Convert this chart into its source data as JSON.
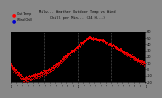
{
  "title_line1": "Milw... Weather Outdoor Temp vs Wind",
  "title_line2": "Chill per Min... (24 H...)",
  "bg_color": "#000000",
  "outer_bg": "#888888",
  "temp_color": "#ff0000",
  "windchill_color": "#ff0000",
  "ylim": [
    -20,
    60
  ],
  "ytick_labels": [
    "60",
    "50",
    "40",
    "30",
    "20",
    "10",
    "0",
    "-10",
    "-20"
  ],
  "ytick_vals": [
    60,
    50,
    40,
    30,
    20,
    10,
    0,
    -10,
    -20
  ],
  "n_points": 1440,
  "title_color": "#ffffff",
  "legend_temp_color": "#ff0000",
  "legend_wc_color": "#0000cc"
}
